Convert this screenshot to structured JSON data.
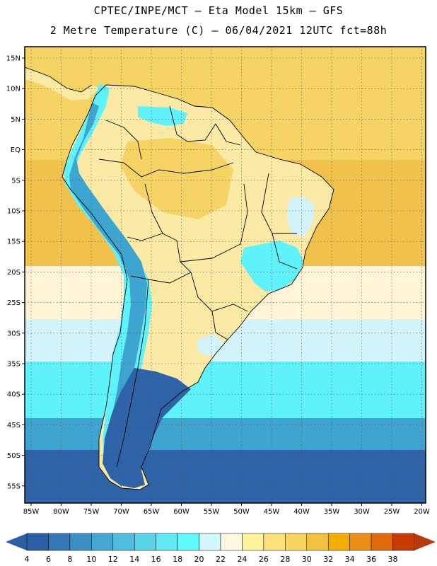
{
  "header": {
    "line1": "CPTEC/INPE/MCT –  Eta Model 15km – GFS",
    "line2": "2 Metre Temperature (C) – 06/04/2021 12UTC fct=88h"
  },
  "map": {
    "lat_labels": [
      "15N",
      "10N",
      "5N",
      "EQ",
      "5S",
      "10S",
      "15S",
      "20S",
      "25S",
      "30S",
      "35S",
      "40S",
      "45S",
      "50S",
      "55S"
    ],
    "lon_labels": [
      "85W",
      "80W",
      "75W",
      "70W",
      "65W",
      "60W",
      "55W",
      "50W",
      "45W",
      "40W",
      "35W",
      "30W",
      "25W",
      "20W"
    ],
    "colors": {
      "ocean_tropical": "#f6d365",
      "ocean_warm": "#f0c24c",
      "land_warm": "#fbe9a6",
      "subtropical": "#fff4d6",
      "cool": "#d2f3fb",
      "cold_cyan": "#5ff2fb",
      "cold_blue": "#3ea4d0",
      "deep_blue": "#2f63a7"
    }
  },
  "colorbar": {
    "labels": [
      "4",
      "6",
      "8",
      "10",
      "12",
      "14",
      "16",
      "18",
      "20",
      "22",
      "24",
      "26",
      "28",
      "30",
      "32",
      "34",
      "36",
      "38"
    ],
    "colors": [
      "#2b5ea4",
      "#3476b6",
      "#3c8fc4",
      "#45a6d1",
      "#4fbcdd",
      "#58d3e8",
      "#5ee9f3",
      "#62fbfd",
      "#d4f6fd",
      "#fef8e2",
      "#fef49c",
      "#fbe07c",
      "#f7d45f",
      "#f2c240",
      "#f3ad00",
      "#ea8e17",
      "#de6a0c",
      "#c73a00"
    ],
    "low_arrow_color": "#2b5ea4",
    "high_arrow_color": "#b53b0c"
  }
}
